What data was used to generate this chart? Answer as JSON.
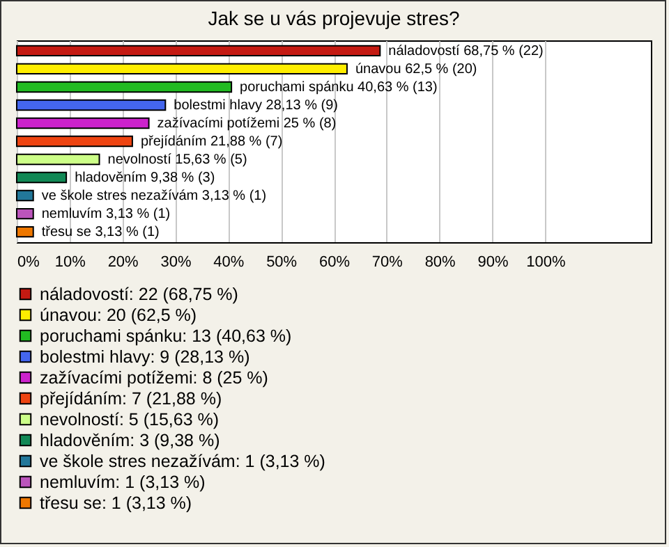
{
  "chart_data": {
    "type": "bar",
    "orientation": "horizontal",
    "stacked": true,
    "title": "Jak se u vás projevuje stres?",
    "categories": [
      null,
      null,
      null,
      null,
      null,
      null,
      null,
      null,
      null,
      null,
      null
    ],
    "series": [
      {
        "name": "náladovostí: 22 (68,75 %)",
        "color": "#c41a12",
        "values": [
          68.75,
          null,
          null,
          null,
          null,
          null,
          null,
          null,
          null,
          null,
          null
        ],
        "value_labels": [
          "náladovostí 68,75 % (22)",
          null,
          null,
          null,
          null,
          null,
          null,
          null,
          null,
          null,
          null
        ]
      },
      {
        "name": "únavou: 20 (62,5 %)",
        "color": "#ffee00",
        "values": [
          null,
          62.5,
          null,
          null,
          null,
          null,
          null,
          null,
          null,
          null,
          null
        ],
        "value_labels": [
          null,
          "únavou 62,5 % (20)",
          null,
          null,
          null,
          null,
          null,
          null,
          null,
          null,
          null
        ]
      },
      {
        "name": "poruchami spánku: 13 (40,63 %)",
        "color": "#22bb22",
        "values": [
          null,
          null,
          40.63,
          null,
          null,
          null,
          null,
          null,
          null,
          null,
          null
        ],
        "value_labels": [
          null,
          null,
          "poruchami spánku 40,63 % (13)",
          null,
          null,
          null,
          null,
          null,
          null,
          null,
          null
        ]
      },
      {
        "name": "bolestmi hlavy: 9 (28,13 %)",
        "color": "#4466ee",
        "values": [
          null,
          null,
          null,
          28.13,
          null,
          null,
          null,
          null,
          null,
          null,
          null
        ],
        "value_labels": [
          null,
          null,
          null,
          "bolestmi hlavy 28,13 % (9)",
          null,
          null,
          null,
          null,
          null,
          null,
          null
        ]
      },
      {
        "name": "zažívacími potížemi: 8 (25 %)",
        "color": "#cc22cc",
        "values": [
          null,
          null,
          null,
          null,
          25,
          null,
          null,
          null,
          null,
          null,
          null
        ],
        "value_labels": [
          null,
          null,
          null,
          null,
          "zažívacími potížemi 25 % (8)",
          null,
          null,
          null,
          null,
          null,
          null
        ]
      },
      {
        "name": "přejídáním: 7 (21,88 %)",
        "color": "#ee4411",
        "values": [
          null,
          null,
          null,
          null,
          null,
          21.88,
          null,
          null,
          null,
          null,
          null
        ],
        "value_labels": [
          null,
          null,
          null,
          null,
          null,
          "přejídáním 21,88 % (7)",
          null,
          null,
          null,
          null,
          null
        ]
      },
      {
        "name": "nevolností: 5 (15,63 %)",
        "color": "#ccff88",
        "values": [
          null,
          null,
          null,
          null,
          null,
          null,
          15.63,
          null,
          null,
          null,
          null
        ],
        "value_labels": [
          null,
          null,
          null,
          null,
          null,
          null,
          "nevolností 15,63 % (5)",
          null,
          null,
          null,
          null
        ]
      },
      {
        "name": "hladověním: 3 (9,38 %)",
        "color": "#118855",
        "values": [
          null,
          null,
          null,
          null,
          null,
          null,
          null,
          9.38,
          null,
          null,
          null
        ],
        "value_labels": [
          null,
          null,
          null,
          null,
          null,
          null,
          null,
          "hladověním 9,38 % (3)",
          null,
          null,
          null
        ]
      },
      {
        "name": "ve škole stres nezažívám: 1 (3,13 %)",
        "color": "#227799",
        "values": [
          null,
          null,
          null,
          null,
          null,
          null,
          null,
          null,
          3.13,
          null,
          null
        ],
        "value_labels": [
          null,
          null,
          null,
          null,
          null,
          null,
          null,
          null,
          "ve škole stres nezažívám 3,13 % (1)",
          null,
          null
        ]
      },
      {
        "name": "nemluvím: 1 (3,13 %)",
        "color": "#bb55bb",
        "values": [
          null,
          null,
          null,
          null,
          null,
          null,
          null,
          null,
          null,
          3.13,
          null
        ],
        "value_labels": [
          null,
          null,
          null,
          null,
          null,
          null,
          null,
          null,
          null,
          "nemluvím 3,13 % (1)",
          null
        ]
      },
      {
        "name": "třesu se: 1 (3,13 %)",
        "color": "#ee7700",
        "values": [
          null,
          null,
          null,
          null,
          null,
          null,
          null,
          null,
          null,
          null,
          3.13
        ],
        "value_labels": [
          null,
          null,
          null,
          null,
          null,
          null,
          null,
          null,
          null,
          null,
          "třesu se 3,13 % (1)"
        ]
      }
    ],
    "xlim": [
      0,
      120
    ],
    "xticks": [
      {
        "value": 0,
        "label": "0%"
      },
      {
        "value": 10,
        "label": "10%"
      },
      {
        "value": 20,
        "label": "20%"
      },
      {
        "value": 30,
        "label": "30%"
      },
      {
        "value": 40,
        "label": "40%"
      },
      {
        "value": 50,
        "label": "50%"
      },
      {
        "value": 60,
        "label": "60%"
      },
      {
        "value": 70,
        "label": "70%"
      },
      {
        "value": 80,
        "label": "80%"
      },
      {
        "value": 90,
        "label": "90%"
      },
      {
        "value": 100,
        "label": "100%"
      }
    ],
    "grid": "x",
    "legend": "bottom",
    "tick_labels": "x"
  }
}
